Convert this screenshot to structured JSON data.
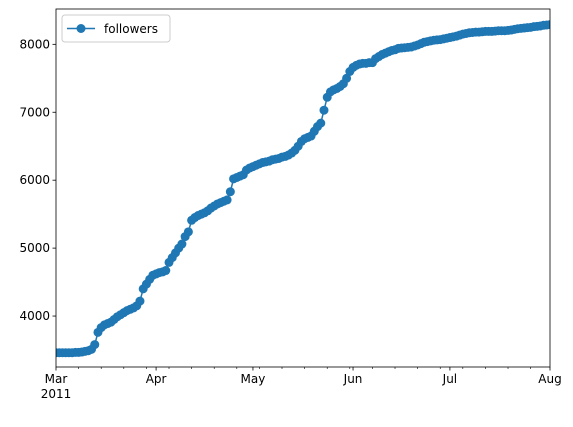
{
  "chart_data": {
    "type": "line",
    "title": "",
    "xlabel": "",
    "ylabel": "",
    "x_axis_kind": "date",
    "xlim": [
      "2011-03-01",
      "2011-08-01"
    ],
    "ylim": [
      3250,
      8520
    ],
    "grid": false,
    "legend_position": "upper-left",
    "line_color": "#1f77b4",
    "marker": "circle",
    "x_ticks": [
      {
        "date": "2011-03-01",
        "label": "Mar",
        "sublabel": "2011"
      },
      {
        "date": "2011-04-01",
        "label": "Apr",
        "sublabel": ""
      },
      {
        "date": "2011-05-01",
        "label": "May",
        "sublabel": ""
      },
      {
        "date": "2011-06-01",
        "label": "Jun",
        "sublabel": ""
      },
      {
        "date": "2011-07-01",
        "label": "Jul",
        "sublabel": ""
      },
      {
        "date": "2011-08-01",
        "label": "Aug",
        "sublabel": ""
      }
    ],
    "y_ticks": [
      4000,
      5000,
      6000,
      7000,
      8000
    ],
    "series": [
      {
        "name": "followers",
        "points": [
          [
            "2011-03-01",
            3460
          ],
          [
            "2011-03-02",
            3460
          ],
          [
            "2011-03-03",
            3460
          ],
          [
            "2011-03-04",
            3460
          ],
          [
            "2011-03-05",
            3460
          ],
          [
            "2011-03-06",
            3460
          ],
          [
            "2011-03-07",
            3465
          ],
          [
            "2011-03-08",
            3465
          ],
          [
            "2011-03-09",
            3470
          ],
          [
            "2011-03-10",
            3480
          ],
          [
            "2011-03-11",
            3490
          ],
          [
            "2011-03-12",
            3510
          ],
          [
            "2011-03-13",
            3580
          ],
          [
            "2011-03-14",
            3760
          ],
          [
            "2011-03-15",
            3830
          ],
          [
            "2011-03-16",
            3870
          ],
          [
            "2011-03-17",
            3890
          ],
          [
            "2011-03-18",
            3910
          ],
          [
            "2011-03-19",
            3950
          ],
          [
            "2011-03-20",
            3990
          ],
          [
            "2011-03-21",
            4020
          ],
          [
            "2011-03-22",
            4050
          ],
          [
            "2011-03-23",
            4080
          ],
          [
            "2011-03-24",
            4100
          ],
          [
            "2011-03-25",
            4120
          ],
          [
            "2011-03-26",
            4150
          ],
          [
            "2011-03-27",
            4220
          ],
          [
            "2011-03-28",
            4400
          ],
          [
            "2011-03-29",
            4470
          ],
          [
            "2011-03-30",
            4540
          ],
          [
            "2011-03-31",
            4600
          ],
          [
            "2011-04-01",
            4620
          ],
          [
            "2011-04-02",
            4640
          ],
          [
            "2011-04-03",
            4650
          ],
          [
            "2011-04-04",
            4670
          ],
          [
            "2011-04-05",
            4790
          ],
          [
            "2011-04-06",
            4860
          ],
          [
            "2011-04-07",
            4930
          ],
          [
            "2011-04-08",
            5000
          ],
          [
            "2011-04-09",
            5060
          ],
          [
            "2011-04-10",
            5170
          ],
          [
            "2011-04-11",
            5240
          ],
          [
            "2011-04-12",
            5410
          ],
          [
            "2011-04-13",
            5450
          ],
          [
            "2011-04-14",
            5480
          ],
          [
            "2011-04-15",
            5500
          ],
          [
            "2011-04-16",
            5520
          ],
          [
            "2011-04-17",
            5550
          ],
          [
            "2011-04-18",
            5590
          ],
          [
            "2011-04-19",
            5620
          ],
          [
            "2011-04-20",
            5650
          ],
          [
            "2011-04-21",
            5670
          ],
          [
            "2011-04-22",
            5690
          ],
          [
            "2011-04-23",
            5710
          ],
          [
            "2011-04-24",
            5830
          ],
          [
            "2011-04-25",
            6020
          ],
          [
            "2011-04-26",
            6040
          ],
          [
            "2011-04-27",
            6060
          ],
          [
            "2011-04-28",
            6080
          ],
          [
            "2011-04-29",
            6150
          ],
          [
            "2011-04-30",
            6180
          ],
          [
            "2011-05-01",
            6200
          ],
          [
            "2011-05-02",
            6220
          ],
          [
            "2011-05-03",
            6240
          ],
          [
            "2011-05-04",
            6260
          ],
          [
            "2011-05-05",
            6270
          ],
          [
            "2011-05-06",
            6280
          ],
          [
            "2011-05-07",
            6300
          ],
          [
            "2011-05-08",
            6310
          ],
          [
            "2011-05-09",
            6320
          ],
          [
            "2011-05-10",
            6340
          ],
          [
            "2011-05-11",
            6350
          ],
          [
            "2011-05-12",
            6370
          ],
          [
            "2011-05-13",
            6400
          ],
          [
            "2011-05-14",
            6440
          ],
          [
            "2011-05-15",
            6500
          ],
          [
            "2011-05-16",
            6570
          ],
          [
            "2011-05-17",
            6610
          ],
          [
            "2011-05-18",
            6630
          ],
          [
            "2011-05-19",
            6650
          ],
          [
            "2011-05-20",
            6720
          ],
          [
            "2011-05-21",
            6790
          ],
          [
            "2011-05-22",
            6840
          ],
          [
            "2011-05-23",
            7030
          ],
          [
            "2011-05-24",
            7220
          ],
          [
            "2011-05-25",
            7300
          ],
          [
            "2011-05-26",
            7330
          ],
          [
            "2011-05-27",
            7350
          ],
          [
            "2011-05-28",
            7380
          ],
          [
            "2011-05-29",
            7420
          ],
          [
            "2011-05-30",
            7500
          ],
          [
            "2011-05-31",
            7600
          ],
          [
            "2011-06-01",
            7660
          ],
          [
            "2011-06-02",
            7690
          ],
          [
            "2011-06-03",
            7710
          ],
          [
            "2011-06-04",
            7720
          ],
          [
            "2011-06-05",
            7720
          ],
          [
            "2011-06-06",
            7730
          ],
          [
            "2011-06-07",
            7730
          ],
          [
            "2011-06-08",
            7790
          ],
          [
            "2011-06-09",
            7820
          ],
          [
            "2011-06-10",
            7850
          ],
          [
            "2011-06-11",
            7870
          ],
          [
            "2011-06-12",
            7890
          ],
          [
            "2011-06-13",
            7910
          ],
          [
            "2011-06-14",
            7920
          ],
          [
            "2011-06-15",
            7940
          ],
          [
            "2011-06-16",
            7945
          ],
          [
            "2011-06-17",
            7950
          ],
          [
            "2011-06-18",
            7955
          ],
          [
            "2011-06-19",
            7960
          ],
          [
            "2011-06-20",
            7975
          ],
          [
            "2011-06-21",
            7990
          ],
          [
            "2011-06-22",
            8010
          ],
          [
            "2011-06-23",
            8030
          ],
          [
            "2011-06-24",
            8040
          ],
          [
            "2011-06-25",
            8050
          ],
          [
            "2011-06-26",
            8060
          ],
          [
            "2011-06-27",
            8065
          ],
          [
            "2011-06-28",
            8070
          ],
          [
            "2011-06-29",
            8080
          ],
          [
            "2011-06-30",
            8090
          ],
          [
            "2011-07-01",
            8100
          ],
          [
            "2011-07-02",
            8110
          ],
          [
            "2011-07-03",
            8120
          ],
          [
            "2011-07-04",
            8135
          ],
          [
            "2011-07-05",
            8150
          ],
          [
            "2011-07-06",
            8160
          ],
          [
            "2011-07-07",
            8170
          ],
          [
            "2011-07-08",
            8175
          ],
          [
            "2011-07-09",
            8180
          ],
          [
            "2011-07-10",
            8180
          ],
          [
            "2011-07-11",
            8185
          ],
          [
            "2011-07-12",
            8190
          ],
          [
            "2011-07-13",
            8190
          ],
          [
            "2011-07-14",
            8190
          ],
          [
            "2011-07-15",
            8195
          ],
          [
            "2011-07-16",
            8200
          ],
          [
            "2011-07-17",
            8200
          ],
          [
            "2011-07-18",
            8200
          ],
          [
            "2011-07-19",
            8205
          ],
          [
            "2011-07-20",
            8210
          ],
          [
            "2011-07-21",
            8220
          ],
          [
            "2011-07-22",
            8230
          ],
          [
            "2011-07-23",
            8235
          ],
          [
            "2011-07-24",
            8240
          ],
          [
            "2011-07-25",
            8245
          ],
          [
            "2011-07-26",
            8250
          ],
          [
            "2011-07-27",
            8260
          ],
          [
            "2011-07-28",
            8265
          ],
          [
            "2011-07-29",
            8270
          ],
          [
            "2011-07-30",
            8280
          ],
          [
            "2011-07-31",
            8285
          ],
          [
            "2011-08-01",
            8290
          ]
        ]
      }
    ]
  }
}
